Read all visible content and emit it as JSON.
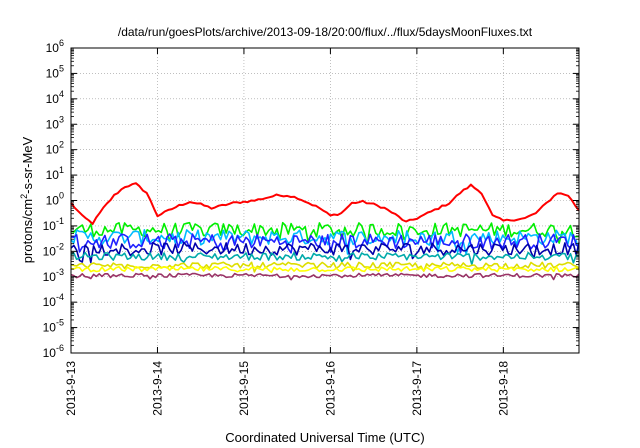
{
  "chart_data": {
    "type": "line",
    "title": "/data/run/goesPlots/archive/2013-09-18/20:00/flux/../flux/5daysMoonFluxes.txt",
    "xlabel": "Coordinated Universal Time (UTC)",
    "ylabel": {
      "prefix": "protons/cm",
      "sup": "2",
      "suffix": "-s-sr-MeV"
    },
    "y_scale": "log",
    "ylim_exponents": [
      -6,
      6
    ],
    "y_tick_exponents": [
      6,
      5,
      4,
      3,
      2,
      1,
      0,
      -1,
      -2,
      -3,
      -4,
      -5,
      -6
    ],
    "y_tick_base": "10",
    "xlim": [
      "2013-09-13T00:00",
      "2013-09-18T21:00"
    ],
    "x_ticks": [
      "2013-9-13",
      "2013-9-14",
      "2013-9-15",
      "2013-9-16",
      "2013-9-17",
      "2013-9-18"
    ],
    "grid": true,
    "legend": "none",
    "series": [
      {
        "color": "#ff0000",
        "x_hours": [
          0,
          3,
          6,
          9,
          12,
          15,
          18,
          21,
          24,
          27,
          30,
          33,
          36,
          39,
          42,
          45,
          48,
          51,
          54,
          57,
          60,
          63,
          66,
          69,
          72,
          75,
          78,
          81,
          84,
          87,
          90,
          93,
          96,
          99,
          102,
          105,
          108,
          111,
          114,
          117,
          120,
          123,
          126,
          129,
          132,
          135,
          138,
          141
        ],
        "log10_y": [
          -0.1,
          -0.6,
          -0.9,
          -0.3,
          0.2,
          0.55,
          0.65,
          0.3,
          -0.6,
          -0.4,
          -0.2,
          -0.05,
          -0.15,
          -0.3,
          -0.2,
          -0.1,
          -0.05,
          0.0,
          0.1,
          0.2,
          0.2,
          0.1,
          -0.1,
          -0.3,
          -0.6,
          -0.5,
          -0.1,
          -0.05,
          -0.15,
          -0.3,
          -0.55,
          -0.85,
          -0.7,
          -0.5,
          -0.3,
          -0.1,
          0.3,
          0.6,
          0.3,
          -0.6,
          -0.8,
          -0.75,
          -0.7,
          -0.5,
          -0.1,
          0.3,
          0.2,
          -0.4
        ]
      },
      {
        "color": "#00ee00",
        "level": -1.15,
        "amp": 0.28
      },
      {
        "color": "#00bbff",
        "level": -1.45,
        "amp": 0.3
      },
      {
        "color": "#2020ff",
        "level": -1.6,
        "amp": 0.3
      },
      {
        "color": "#0000aa",
        "level": -1.9,
        "amp": 0.25
      },
      {
        "color": "#00aaaa",
        "level": -2.2,
        "amp": 0.15
      },
      {
        "color": "#dddd00",
        "level": -2.55,
        "amp": 0.12
      },
      {
        "color": "#ffff00",
        "level": -2.7,
        "amp": 0.1
      },
      {
        "color": "#993366",
        "level": -2.95,
        "amp": 0.08
      }
    ]
  }
}
